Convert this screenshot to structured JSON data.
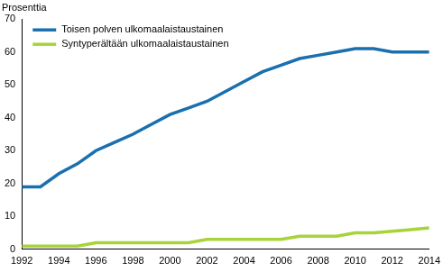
{
  "chart_data": {
    "type": "line",
    "ylabel": "Prosenttia",
    "x": [
      1992,
      1993,
      1994,
      1995,
      1996,
      1997,
      1998,
      1999,
      2000,
      2001,
      2002,
      2003,
      2004,
      2005,
      2006,
      2007,
      2008,
      2009,
      2010,
      2011,
      2012,
      2013,
      2014
    ],
    "series": [
      {
        "name": "Toisen polven ulkomaalaistaustainen",
        "color": "#1a6faf",
        "values": [
          19,
          19,
          23,
          26,
          30,
          32.5,
          35,
          38,
          41,
          43,
          45,
          48,
          51,
          54,
          56,
          58,
          59,
          60,
          61,
          61,
          60,
          60,
          60
        ]
      },
      {
        "name": "Syntyperältään ulkomaalaistaustainen",
        "color": "#a8d33a",
        "values": [
          1,
          1,
          1,
          1,
          2,
          2,
          2,
          2,
          2,
          2,
          3,
          3,
          3,
          3,
          3,
          4,
          4,
          4,
          5,
          5,
          5.5,
          6,
          6.5
        ]
      }
    ],
    "xlim": [
      1992,
      2014
    ],
    "xticks": [
      1992,
      1994,
      1996,
      1998,
      2000,
      2002,
      2004,
      2006,
      2008,
      2010,
      2012,
      2014
    ],
    "ylim": [
      0,
      70
    ],
    "yticks": [
      0,
      10,
      20,
      30,
      40,
      50,
      60,
      70
    ],
    "grid": false,
    "legend": "upper left"
  }
}
